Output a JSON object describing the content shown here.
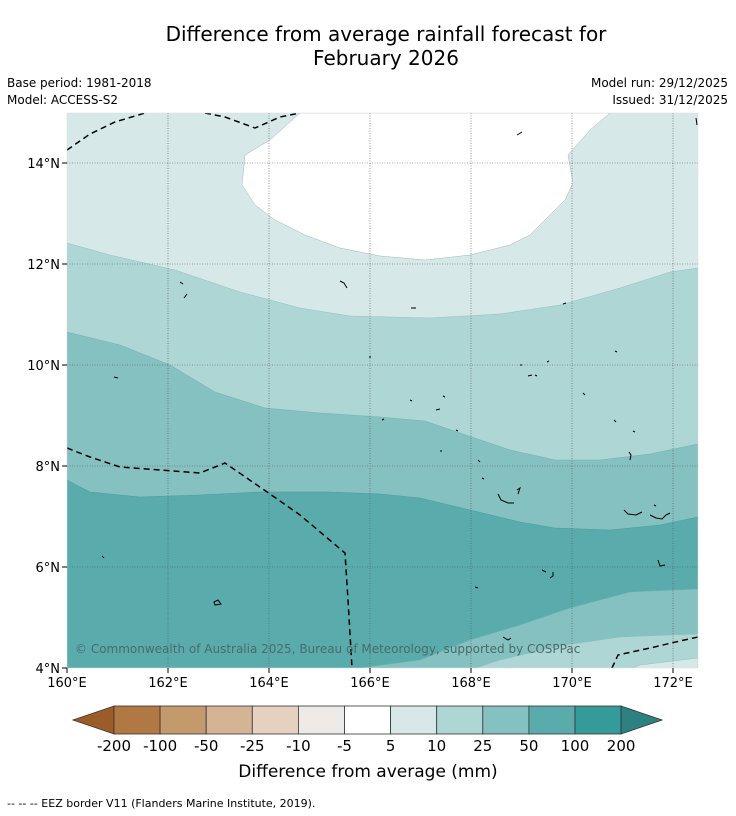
{
  "title": {
    "line1": "Difference from average rainfall forecast for",
    "line2": "February 2026"
  },
  "meta": {
    "base_period": "Base period: 1981-2018",
    "model": "Model: ACCESS-S2",
    "model_run": "Model run: 29/12/2025",
    "issued": "Issued: 31/12/2025"
  },
  "map": {
    "copyright": "© Commonwealth of Australia 2025, Bureau of Meteorology, supported by COSPPac",
    "lat_labels": [
      "14°N",
      "12°N",
      "10°N",
      "8°N",
      "6°N",
      "4°N"
    ],
    "lon_labels": [
      "160°E",
      "162°E",
      "164°E",
      "166°E",
      "168°E",
      "170°E",
      "172°E"
    ],
    "lat_range": [
      4,
      15
    ],
    "lon_range": [
      160,
      172.5
    ]
  },
  "colorbar": {
    "tick_labels": [
      "-200",
      "-100",
      "-50",
      "-25",
      "-10",
      "-5",
      "5",
      "10",
      "25",
      "50",
      "100",
      "200"
    ],
    "colors": [
      "#9c5c2a",
      "#b07842",
      "#c49a6c",
      "#d5b495",
      "#e6d0bf",
      "#eeeae7",
      "#ffffff",
      "#d6e9e8",
      "#aed6d5",
      "#85c1c0",
      "#5aacac",
      "#349b9a",
      "#2d8180"
    ],
    "label": "Difference from average (mm)"
  },
  "footnote": "--  --  -- EEZ border V11 (Flanders Marine Institute, 2019)."
}
